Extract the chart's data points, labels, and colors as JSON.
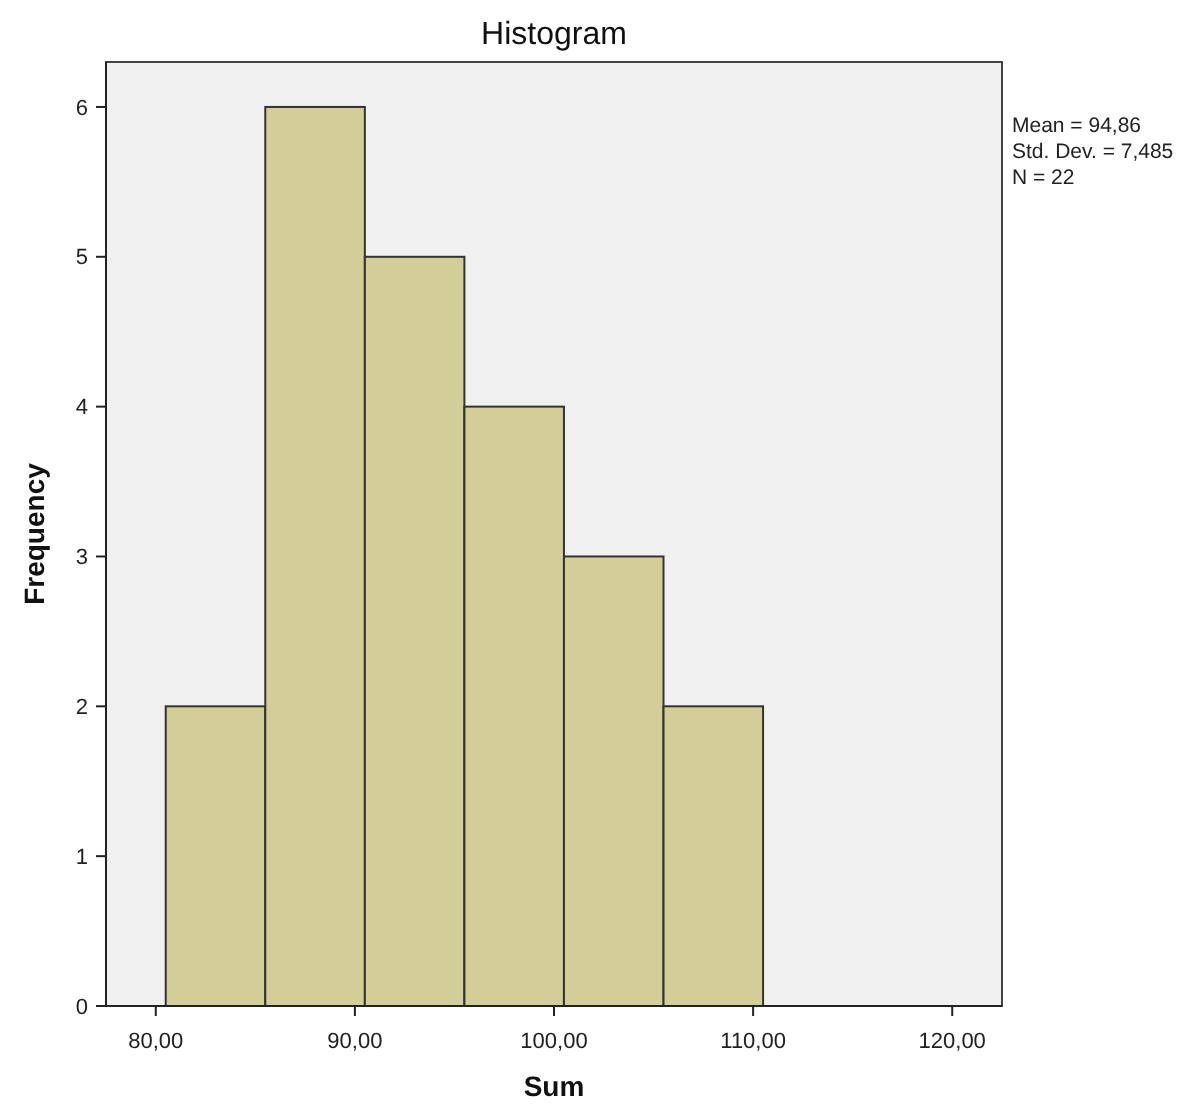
{
  "chart_data": {
    "type": "histogram",
    "title": "Histogram",
    "xlabel": "Sum",
    "ylabel": "Frequency",
    "bins": [
      80.5,
      85.5,
      90.5,
      95.5,
      100.5,
      105.5,
      110.5
    ],
    "values": [
      2,
      6,
      5,
      4,
      3,
      2
    ],
    "color": "#d3ce97",
    "xlim": [
      77.5,
      122.5
    ],
    "xticks": [
      {
        "value": 80,
        "label": "80,00"
      },
      {
        "value": 90,
        "label": "90,00"
      },
      {
        "value": 100,
        "label": "100,00"
      },
      {
        "value": 110,
        "label": "110,00"
      },
      {
        "value": 120,
        "label": "120,00"
      }
    ],
    "ylim": [
      0,
      6.3
    ],
    "yticks": [
      0,
      1,
      2,
      3,
      4,
      5,
      6
    ],
    "annotations": [
      "Mean = 94,86",
      "Std. Dev. = 7,485",
      "N = 22"
    ],
    "grid": false
  }
}
